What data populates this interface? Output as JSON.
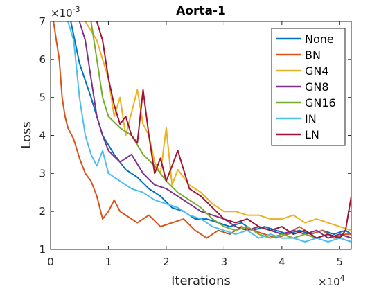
{
  "chart_data": {
    "type": "line",
    "title": "Aorta-1",
    "xlabel": "Iterations",
    "ylabel": "Loss",
    "x_multiplier": "×10",
    "x_exponent": "4",
    "y_multiplier": "×10",
    "y_exponent": "-3",
    "xlim": [
      0,
      5.2
    ],
    "ylim": [
      1,
      7
    ],
    "xticks": [
      0,
      1,
      2,
      3,
      4,
      5
    ],
    "yticks": [
      1,
      2,
      3,
      4,
      5,
      6,
      7
    ],
    "legend_position": "top-right",
    "grid": false,
    "series": [
      {
        "name": "None",
        "color": "#0072BD",
        "x": [
          0.35,
          0.5,
          0.7,
          0.9,
          1.1,
          1.3,
          1.5,
          1.7,
          1.9,
          2.1,
          2.3,
          2.5,
          2.7,
          2.9,
          3.1,
          3.3,
          3.5,
          3.7,
          3.9,
          4.1,
          4.3,
          4.5,
          4.7,
          4.9,
          5.1,
          5.2
        ],
        "y": [
          7.0,
          5.9,
          5.0,
          4.0,
          3.5,
          3.1,
          2.9,
          2.6,
          2.4,
          2.1,
          2.0,
          1.8,
          1.8,
          1.7,
          1.6,
          1.7,
          1.5,
          1.6,
          1.5,
          1.4,
          1.5,
          1.4,
          1.5,
          1.4,
          1.5,
          1.4
        ]
      },
      {
        "name": "BN",
        "color": "#D95319",
        "x": [
          0.05,
          0.1,
          0.15,
          0.2,
          0.25,
          0.3,
          0.4,
          0.5,
          0.6,
          0.7,
          0.8,
          0.9,
          1.0,
          1.1,
          1.2,
          1.3,
          1.5,
          1.7,
          1.9,
          2.1,
          2.3,
          2.5,
          2.7,
          2.9,
          3.1,
          3.3,
          3.5,
          3.7,
          3.9,
          4.1,
          4.3,
          4.5,
          4.7,
          4.9,
          5.1,
          5.2
        ],
        "y": [
          7.0,
          6.5,
          6.0,
          5.0,
          4.5,
          4.2,
          3.9,
          3.4,
          3.0,
          2.8,
          2.4,
          1.8,
          2.0,
          2.3,
          2.0,
          1.9,
          1.7,
          1.9,
          1.6,
          1.7,
          1.8,
          1.5,
          1.3,
          1.5,
          1.4,
          1.6,
          1.5,
          1.4,
          1.3,
          1.4,
          1.6,
          1.4,
          1.5,
          1.3,
          1.4,
          1.4
        ]
      },
      {
        "name": "GN4",
        "color": "#EDB120",
        "x": [
          0.6,
          0.8,
          1.0,
          1.1,
          1.2,
          1.3,
          1.4,
          1.5,
          1.6,
          1.7,
          1.8,
          1.9,
          2.0,
          2.1,
          2.2,
          2.4,
          2.6,
          2.8,
          3.0,
          3.2,
          3.4,
          3.6,
          3.8,
          4.0,
          4.2,
          4.4,
          4.6,
          4.8,
          5.0,
          5.2
        ],
        "y": [
          7.0,
          6.5,
          5.5,
          4.5,
          5.0,
          4.0,
          4.6,
          5.2,
          4.3,
          4.0,
          3.3,
          3.0,
          4.2,
          2.7,
          3.1,
          2.7,
          2.5,
          2.2,
          2.0,
          2.0,
          1.9,
          1.9,
          1.8,
          1.8,
          1.9,
          1.7,
          1.8,
          1.7,
          1.6,
          1.5
        ]
      },
      {
        "name": "GN8",
        "color": "#7E2F8E",
        "x": [
          0.5,
          0.6,
          0.7,
          0.8,
          0.9,
          1.0,
          1.2,
          1.4,
          1.6,
          1.8,
          2.0,
          2.2,
          2.4,
          2.6,
          2.8,
          3.0,
          3.2,
          3.4,
          3.6,
          3.8,
          4.0,
          4.2,
          4.4,
          4.6,
          4.8,
          5.0,
          5.2
        ],
        "y": [
          7.0,
          6.5,
          5.5,
          4.5,
          4.0,
          3.6,
          3.3,
          3.5,
          3.0,
          2.7,
          2.6,
          2.4,
          2.2,
          2.0,
          1.9,
          1.8,
          1.6,
          1.5,
          1.6,
          1.5,
          1.4,
          1.5,
          1.4,
          1.5,
          1.3,
          1.4,
          1.3
        ]
      },
      {
        "name": "GN16",
        "color": "#77AC30",
        "x": [
          0.7,
          0.8,
          0.9,
          1.0,
          1.2,
          1.4,
          1.6,
          1.8,
          2.0,
          2.2,
          2.4,
          2.6,
          2.8,
          3.0,
          3.2,
          3.4,
          3.6,
          3.8,
          4.0,
          4.2,
          4.4,
          4.6,
          4.8,
          5.0,
          5.2
        ],
        "y": [
          7.0,
          6.0,
          5.0,
          4.5,
          4.2,
          4.0,
          3.5,
          3.2,
          2.8,
          2.5,
          2.3,
          2.1,
          1.8,
          1.6,
          1.5,
          1.6,
          1.4,
          1.3,
          1.4,
          1.3,
          1.4,
          1.3,
          1.4,
          1.3,
          1.2
        ]
      },
      {
        "name": "IN",
        "color": "#4DBEEE",
        "x": [
          0.3,
          0.4,
          0.5,
          0.6,
          0.7,
          0.8,
          0.9,
          1.0,
          1.2,
          1.4,
          1.6,
          1.8,
          2.0,
          2.2,
          2.4,
          2.6,
          2.8,
          3.0,
          3.2,
          3.4,
          3.6,
          3.8,
          4.0,
          4.2,
          4.4,
          4.6,
          4.8,
          5.0,
          5.2
        ],
        "y": [
          7.0,
          6.5,
          5.0,
          4.0,
          3.5,
          3.2,
          3.6,
          3.0,
          2.8,
          2.6,
          2.5,
          2.3,
          2.2,
          2.1,
          1.9,
          1.8,
          1.6,
          1.5,
          1.4,
          1.5,
          1.3,
          1.4,
          1.3,
          1.3,
          1.2,
          1.3,
          1.2,
          1.3,
          1.2
        ]
      },
      {
        "name": "LN",
        "color": "#A2142F",
        "x": [
          0.8,
          0.9,
          1.0,
          1.1,
          1.2,
          1.3,
          1.4,
          1.5,
          1.6,
          1.7,
          1.8,
          1.9,
          2.0,
          2.1,
          2.2,
          2.4,
          2.6,
          2.8,
          3.0,
          3.2,
          3.4,
          3.6,
          3.8,
          4.0,
          4.2,
          4.4,
          4.6,
          4.8,
          5.0,
          5.1,
          5.2
        ],
        "y": [
          7.0,
          6.5,
          5.5,
          4.8,
          4.3,
          4.5,
          4.0,
          3.8,
          5.2,
          4.0,
          3.0,
          3.4,
          2.8,
          3.2,
          3.6,
          2.6,
          2.4,
          2.1,
          1.8,
          1.7,
          1.8,
          1.6,
          1.5,
          1.6,
          1.4,
          1.5,
          1.3,
          1.4,
          1.3,
          1.5,
          2.4
        ]
      }
    ]
  }
}
